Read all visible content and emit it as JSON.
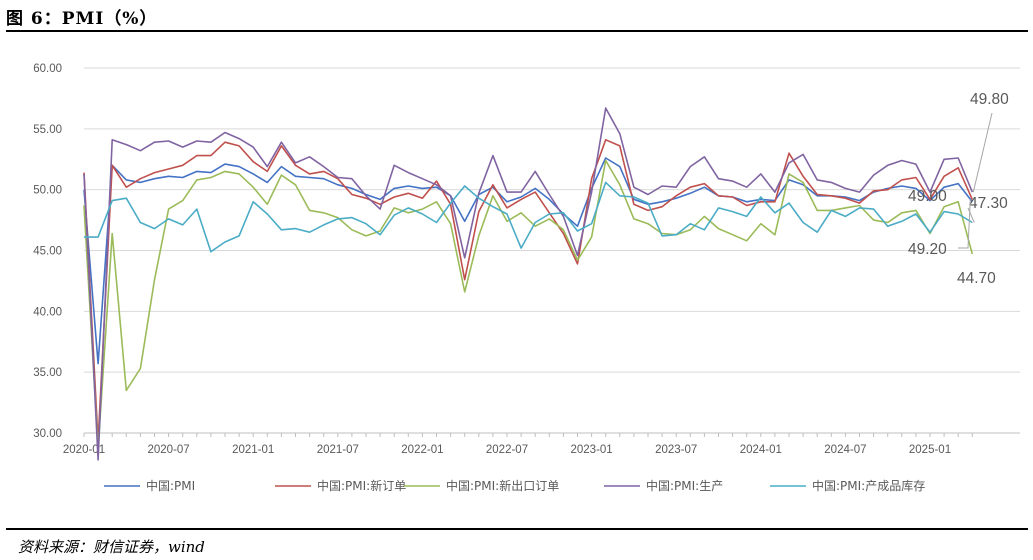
{
  "header": {
    "title": "图 6：PMI（%）"
  },
  "footer": {
    "source": "资料来源：财信证券，wind"
  },
  "chart_data": {
    "type": "line",
    "title": "图 6：PMI（%）",
    "xlabel": "",
    "ylabel": "",
    "ylim": [
      30,
      60
    ],
    "yticks": [
      "30.00",
      "35.00",
      "40.00",
      "45.00",
      "50.00",
      "55.00",
      "60.00"
    ],
    "xticks": [
      "2020-01",
      "2020-07",
      "2021-01",
      "2021-07",
      "2022-01",
      "2022-07",
      "2023-01",
      "2023-07",
      "2024-01",
      "2024-07",
      "2025-01"
    ],
    "grid": "horizontal",
    "legend_position": "bottom",
    "x": [
      "2020-01",
      "2020-02",
      "2020-03",
      "2020-04",
      "2020-05",
      "2020-06",
      "2020-07",
      "2020-08",
      "2020-09",
      "2020-10",
      "2020-11",
      "2020-12",
      "2021-01",
      "2021-02",
      "2021-03",
      "2021-04",
      "2021-05",
      "2021-06",
      "2021-07",
      "2021-08",
      "2021-09",
      "2021-10",
      "2021-11",
      "2021-12",
      "2022-01",
      "2022-02",
      "2022-03",
      "2022-04",
      "2022-05",
      "2022-06",
      "2022-07",
      "2022-08",
      "2022-09",
      "2022-10",
      "2022-11",
      "2022-12",
      "2023-01",
      "2023-02",
      "2023-03",
      "2023-04",
      "2023-05",
      "2023-06",
      "2023-07",
      "2023-08",
      "2023-09",
      "2023-10",
      "2023-11",
      "2023-12",
      "2024-01",
      "2024-02",
      "2024-03",
      "2024-04",
      "2024-05",
      "2024-06",
      "2024-07",
      "2024-08",
      "2024-09",
      "2024-10",
      "2024-11",
      "2024-12",
      "2025-01",
      "2025-02",
      "2025-03",
      "2025-04"
    ],
    "series": [
      {
        "name": "中国:PMI",
        "color": "#4472C4",
        "values": [
          50.0,
          35.7,
          52.0,
          50.8,
          50.6,
          50.9,
          51.1,
          51.0,
          51.5,
          51.4,
          52.1,
          51.9,
          51.3,
          50.6,
          51.9,
          51.1,
          51.0,
          50.9,
          50.4,
          50.1,
          49.6,
          49.2,
          50.1,
          50.3,
          50.1,
          50.2,
          49.5,
          47.4,
          49.6,
          50.2,
          49.0,
          49.4,
          50.1,
          49.2,
          48.0,
          47.0,
          50.1,
          52.6,
          51.9,
          49.2,
          48.8,
          49.0,
          49.3,
          49.7,
          50.2,
          49.5,
          49.4,
          49.0,
          49.2,
          49.1,
          50.8,
          50.4,
          49.5,
          49.5,
          49.4,
          49.1,
          49.8,
          50.1,
          50.3,
          50.1,
          49.1,
          50.2,
          50.5,
          49.0
        ]
      },
      {
        "name": "中国:PMI:新订单",
        "color": "#C0504D",
        "values": [
          51.4,
          29.3,
          52.0,
          50.2,
          50.9,
          51.4,
          51.7,
          52.0,
          52.8,
          52.8,
          53.9,
          53.6,
          52.3,
          51.5,
          53.6,
          52.0,
          51.3,
          51.5,
          50.9,
          49.6,
          49.3,
          48.8,
          49.4,
          49.7,
          49.3,
          50.7,
          48.8,
          42.6,
          48.2,
          50.4,
          48.5,
          49.2,
          49.8,
          48.1,
          46.4,
          43.9,
          50.9,
          54.1,
          53.6,
          48.8,
          48.3,
          48.6,
          49.5,
          50.2,
          50.5,
          49.5,
          49.4,
          48.7,
          49.0,
          49.0,
          53.0,
          51.1,
          49.6,
          49.5,
          49.3,
          48.9,
          49.9,
          50.0,
          50.8,
          51.0,
          49.2,
          51.1,
          51.8,
          49.2
        ]
      },
      {
        "name": "中国:PMI:新出口订单",
        "color": "#9BBB59",
        "values": [
          48.7,
          28.7,
          46.4,
          33.5,
          35.3,
          42.6,
          48.4,
          49.1,
          50.8,
          51.0,
          51.5,
          51.3,
          50.2,
          48.8,
          51.2,
          50.4,
          48.3,
          48.1,
          47.7,
          46.7,
          46.2,
          46.6,
          48.5,
          48.1,
          48.4,
          49.0,
          47.2,
          41.6,
          46.2,
          49.5,
          47.4,
          48.1,
          47.0,
          47.6,
          46.7,
          44.2,
          46.1,
          52.4,
          50.4,
          47.6,
          47.2,
          46.4,
          46.3,
          46.7,
          47.8,
          46.8,
          46.3,
          45.8,
          47.2,
          46.3,
          51.3,
          50.6,
          48.3,
          48.3,
          48.5,
          48.7,
          47.5,
          47.3,
          48.1,
          48.3,
          46.4,
          48.6,
          49.0,
          44.7
        ]
      },
      {
        "name": "中国:PMI:生产",
        "color": "#8064A2",
        "values": [
          51.3,
          27.8,
          54.1,
          53.7,
          53.2,
          53.9,
          54.0,
          53.5,
          54.0,
          53.9,
          54.7,
          54.2,
          53.5,
          51.9,
          53.9,
          52.2,
          52.7,
          51.9,
          51.0,
          50.9,
          49.5,
          48.4,
          52.0,
          51.4,
          50.9,
          50.4,
          49.5,
          44.4,
          49.7,
          52.8,
          49.8,
          49.8,
          51.5,
          49.6,
          47.8,
          44.6,
          49.8,
          56.7,
          54.6,
          50.2,
          49.6,
          50.3,
          50.2,
          51.9,
          52.7,
          50.9,
          50.7,
          50.2,
          51.3,
          49.8,
          52.2,
          52.9,
          50.8,
          50.6,
          50.1,
          49.8,
          51.2,
          52.0,
          52.4,
          52.1,
          49.8,
          52.5,
          52.6,
          49.8
        ]
      },
      {
        "name": "中国:PMI:产成品库存",
        "color": "#4BACC6",
        "values": [
          46.1,
          46.1,
          49.1,
          49.3,
          47.3,
          46.8,
          47.6,
          47.1,
          48.4,
          44.9,
          45.7,
          46.2,
          49.0,
          48.0,
          46.7,
          46.8,
          46.5,
          47.1,
          47.6,
          47.7,
          47.2,
          46.3,
          47.9,
          48.5,
          48.0,
          47.3,
          48.9,
          50.3,
          49.3,
          48.6,
          48.0,
          45.2,
          47.3,
          48.0,
          48.1,
          46.6,
          47.2,
          50.6,
          49.5,
          49.4,
          48.9,
          46.2,
          46.3,
          47.2,
          46.7,
          48.5,
          48.2,
          47.8,
          49.4,
          48.1,
          48.9,
          47.3,
          46.5,
          48.3,
          47.8,
          48.5,
          48.4,
          47.0,
          47.4,
          48.0,
          46.5,
          48.2,
          48.0,
          47.3
        ]
      }
    ],
    "annotations": [
      "49.80",
      "49.00",
      "47.30",
      "49.20",
      "44.70"
    ]
  }
}
